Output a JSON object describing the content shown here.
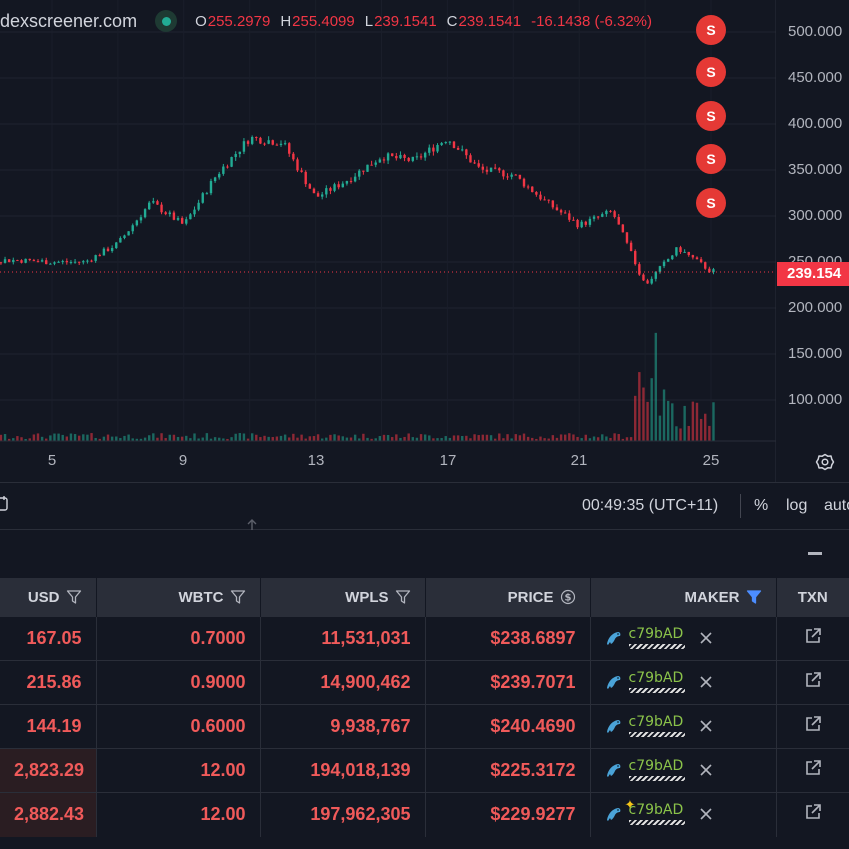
{
  "legend": {
    "source": "dexscreener.com",
    "open_key": "O",
    "open": "255.2979",
    "high_key": "H",
    "high": "255.4099",
    "low_key": "L",
    "low": "239.1541",
    "close_key": "C",
    "close": "239.1541",
    "change": "-16.1438 (-6.32%)"
  },
  "price_axis": [
    "500.000",
    "450.000",
    "400.000",
    "350.000",
    "300.000",
    "250.000",
    "200.000",
    "150.000",
    "100.000"
  ],
  "current_price_tag": "239.154",
  "date_axis": [
    "5",
    "9",
    "13",
    "17",
    "21",
    "25"
  ],
  "markers": [
    "S",
    "S",
    "S",
    "S",
    "S"
  ],
  "toolbar": {
    "clock": "00:49:35 (UTC+11)",
    "percent": "%",
    "log": "log",
    "auto": "auto"
  },
  "table": {
    "headers": {
      "usd": "USD",
      "wbtc": "WBTC",
      "wpls": "WPLS",
      "price": "PRICE",
      "maker": "MAKER",
      "txn": "TXN"
    },
    "rows": [
      {
        "usd": "167.05",
        "wbtc": "0.7000",
        "wpls": "11,531,031",
        "price": "$238.6897",
        "maker": "c79bAD"
      },
      {
        "usd": "215.86",
        "wbtc": "0.9000",
        "wpls": "14,900,462",
        "price": "$239.7071",
        "maker": "c79bAD"
      },
      {
        "usd": "144.19",
        "wbtc": "0.6000",
        "wpls": "9,938,767",
        "price": "$240.4690",
        "maker": "c79bAD"
      },
      {
        "usd": "2,823.29",
        "wbtc": "12.00",
        "wpls": "194,018,139",
        "price": "$225.3172",
        "maker": "c79bAD"
      },
      {
        "usd": "2,882.43",
        "wbtc": "12.00",
        "wpls": "197,962,305",
        "price": "$229.9277",
        "maker": "c79bAD"
      }
    ]
  },
  "colors": {
    "background": "#131722",
    "up": "#22ab94",
    "down": "#f23645",
    "trade_sell": "#f05a5a",
    "maker_address": "#8bc34a",
    "maker_filter": "#4c8dff"
  },
  "chart_data": {
    "type": "candlestick",
    "series": [
      {
        "name": "price",
        "x": [
          1,
          2,
          3,
          4,
          5,
          6,
          7,
          8,
          9,
          10,
          11,
          12,
          13,
          14,
          15,
          16,
          17,
          18,
          19,
          20,
          21,
          22,
          23,
          24,
          25
        ],
        "values": [
          258,
          255,
          252,
          252,
          250,
          250,
          270,
          315,
          290,
          345,
          385,
          380,
          320,
          340,
          365,
          360,
          385,
          350,
          345,
          315,
          290,
          305,
          225,
          265,
          240
        ]
      }
    ],
    "ylim": [
      50,
      520
    ],
    "grid": true
  }
}
